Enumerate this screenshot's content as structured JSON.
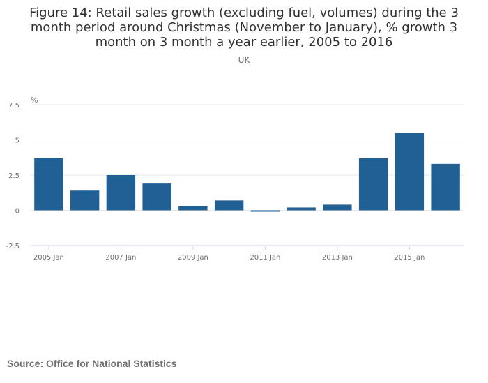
{
  "chart_data": {
    "type": "bar",
    "title": "Figure 14: Retail sales growth (excluding fuel, volumes) during the 3 month period around Christmas (November to January), % growth 3 month on 3 month a year earlier, 2005 to 2016",
    "subtitle": "UK",
    "ylabel": "%",
    "xlabel": "",
    "ylim": [
      -2.5,
      7.5
    ],
    "yticks": [
      -2.5,
      0,
      2.5,
      5,
      7.5
    ],
    "ytick_labels": [
      "-2.5",
      "0",
      "2.5",
      "5",
      "7.5"
    ],
    "categories": [
      "2005 Jan",
      "2006 Jan",
      "2007 Jan",
      "2008 Jan",
      "2009 Jan",
      "2010 Jan",
      "2011 Jan",
      "2012 Jan",
      "2013 Jan",
      "2014 Jan",
      "2015 Jan",
      "2016 Jan"
    ],
    "xtick_labels_shown": [
      "2005 Jan",
      "2007 Jan",
      "2009 Jan",
      "2011 Jan",
      "2013 Jan",
      "2015 Jan"
    ],
    "values": [
      3.7,
      1.4,
      2.5,
      1.9,
      0.3,
      0.7,
      -0.1,
      0.2,
      0.4,
      3.7,
      5.5,
      3.3
    ],
    "bar_color": "#206095",
    "grid": true
  },
  "source_text": "Source: Office for National Statistics"
}
